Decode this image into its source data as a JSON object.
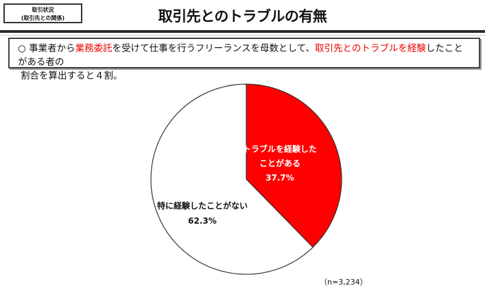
{
  "header": {
    "tag_line1": "取引状況",
    "tag_line2": "(取引先との関係)",
    "title": "取引先とのトラブルの有無"
  },
  "summary": {
    "bullet": "○",
    "parts": [
      "事業者から",
      "業務委託",
      "を受けて仕事を行うフリーランスを母数として、",
      "取引先とのトラブルを経験",
      "したことがある者の",
      "割合を算出すると４割。"
    ]
  },
  "chart_data": {
    "type": "pie",
    "title": "取引先とのトラブルの有無",
    "slices": [
      {
        "label_line1": "トラブルを経験した",
        "label_line2": "ことがある",
        "value": 37.7,
        "value_label": "37.7%",
        "color": "#ff0000"
      },
      {
        "label_line1": "特に経験したことがない",
        "label_line2": "",
        "value": 62.3,
        "value_label": "62.3%",
        "color": "#ffffff"
      }
    ],
    "note": "（n=3,234）"
  }
}
